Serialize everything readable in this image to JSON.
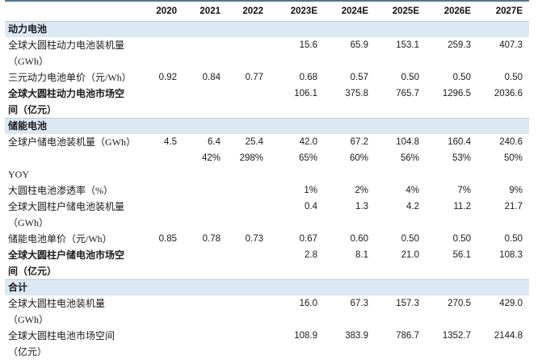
{
  "table": {
    "columns": [
      "",
      "2020",
      "2021",
      "2022",
      "2023E",
      "2024E",
      "2025E",
      "2026E",
      "2027E"
    ],
    "sections": [
      {
        "title": "动力电池",
        "rows": [
          {
            "label": "全球大圆柱动力电池装机量\n（GWh）",
            "bold": false,
            "values": [
              "",
              "",
              "",
              "15.6",
              "65.9",
              "153.1",
              "259.3",
              "407.3"
            ]
          },
          {
            "label": "三元动力电池单价（元/Wh）",
            "bold": false,
            "values": [
              "0.92",
              "0.84",
              "0.77",
              "0.68",
              "0.57",
              "0.50",
              "0.50",
              "0.50"
            ]
          },
          {
            "label": "全球大圆柱动力电池市场空\n间（亿元）",
            "bold": true,
            "values": [
              "",
              "",
              "",
              "106.1",
              "375.8",
              "765.7",
              "1296.5",
              "2036.6"
            ]
          }
        ]
      },
      {
        "title": "储能电池",
        "rows": [
          {
            "label": "全球户储电池装机量（GWh）",
            "bold": false,
            "values": [
              "4.5",
              "6.4",
              "25.4",
              "42.0",
              "67.2",
              "104.8",
              "160.4",
              "240.6"
            ]
          },
          {
            "label": "",
            "bold": false,
            "values": [
              "",
              "42%",
              "298%",
              "65%",
              "60%",
              "56%",
              "53%",
              "50%"
            ]
          },
          {
            "label": "YOY",
            "bold": false,
            "values": [
              "",
              "",
              "",
              "",
              "",
              "",
              "",
              ""
            ]
          },
          {
            "label": "大圆柱电池渗透率（%）",
            "bold": false,
            "values": [
              "",
              "",
              "",
              "1%",
              "2%",
              "4%",
              "7%",
              "9%"
            ]
          },
          {
            "label": "全球大圆柱户储电池装机量\n（GWh）",
            "bold": false,
            "values": [
              "",
              "",
              "",
              "0.4",
              "1.3",
              "4.2",
              "11.2",
              "21.7"
            ]
          },
          {
            "label": "储能电池单价（元/Wh）",
            "bold": false,
            "values": [
              "0.85",
              "0.78",
              "0.73",
              "0.67",
              "0.60",
              "0.50",
              "0.50",
              "0.50"
            ]
          },
          {
            "label": "全球大圆柱户储电池市场空\n间（亿元）",
            "bold": true,
            "values": [
              "",
              "",
              "",
              "2.8",
              "8.1",
              "21.0",
              "56.1",
              "108.3"
            ]
          }
        ]
      },
      {
        "title": "合计",
        "rows": [
          {
            "label": "全球大圆柱电池装机量\n（GWh）",
            "bold": false,
            "values": [
              "",
              "",
              "",
              "16.0",
              "67.3",
              "157.3",
              "270.5",
              "429.0"
            ]
          },
          {
            "label": "全球大圆柱电池市场空间\n（亿元）",
            "bold": false,
            "values": [
              "",
              "",
              "",
              "108.9",
              "383.9",
              "786.7",
              "1352.7",
              "2144.8"
            ]
          }
        ]
      }
    ],
    "colors": {
      "top_border": "#4f7793",
      "section_band_fill": "#dce8f4",
      "section_band_border": "#b7c9da",
      "text": "#1a1a1a"
    }
  }
}
